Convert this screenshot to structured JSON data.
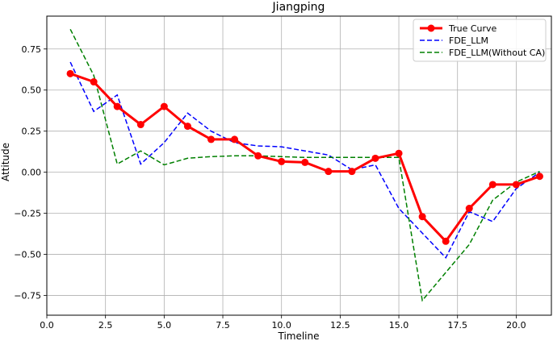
{
  "chart_data": {
    "type": "line",
    "title": "Jiangping",
    "xlabel": "Timeline",
    "ylabel": "Attitude",
    "xlim": [
      0.0,
      21.5
    ],
    "ylim": [
      -0.87,
      0.95
    ],
    "xticks": [
      0.0,
      2.5,
      5.0,
      7.5,
      10.0,
      12.5,
      15.0,
      17.5,
      20.0
    ],
    "xtick_labels": [
      "0.0",
      "2.5",
      "5.0",
      "7.5",
      "10.0",
      "12.5",
      "15.0",
      "17.5",
      "20.0"
    ],
    "yticks": [
      -0.75,
      -0.5,
      -0.25,
      0.0,
      0.25,
      0.5,
      0.75
    ],
    "ytick_labels": [
      "−0.75",
      "−0.50",
      "−0.25",
      "0.00",
      "0.25",
      "0.50",
      "0.75"
    ],
    "grid": true,
    "legend_position": "top-right",
    "x": [
      1,
      2,
      3,
      4,
      5,
      6,
      7,
      8,
      9,
      10,
      11,
      12,
      13,
      14,
      15,
      16,
      17,
      18,
      19,
      20,
      21
    ],
    "series": [
      {
        "name": "True Curve",
        "color": "#ff0000",
        "style": "solid-markers",
        "values": [
          0.6,
          0.55,
          0.4,
          0.29,
          0.4,
          0.28,
          0.2,
          0.2,
          0.1,
          0.065,
          0.06,
          0.005,
          0.005,
          0.085,
          0.115,
          -0.27,
          -0.42,
          -0.22,
          -0.075,
          -0.075,
          -0.025
        ]
      },
      {
        "name": "FDE_LLM",
        "color": "#0000ff",
        "style": "dashed",
        "values": [
          0.67,
          0.37,
          0.47,
          0.05,
          0.18,
          0.36,
          0.25,
          0.18,
          0.16,
          0.155,
          0.13,
          0.105,
          0.015,
          0.045,
          -0.22,
          -0.37,
          -0.52,
          -0.24,
          -0.3,
          -0.1,
          0.0
        ]
      },
      {
        "name": "FDE_LLM(Without CA)",
        "color": "#008000",
        "style": "dashed",
        "values": [
          0.87,
          0.59,
          0.05,
          0.13,
          0.045,
          0.085,
          0.095,
          0.1,
          0.1,
          0.095,
          0.09,
          0.09,
          0.09,
          0.09,
          0.09,
          -0.78,
          -0.61,
          -0.44,
          -0.17,
          -0.06,
          0.005
        ]
      }
    ]
  }
}
